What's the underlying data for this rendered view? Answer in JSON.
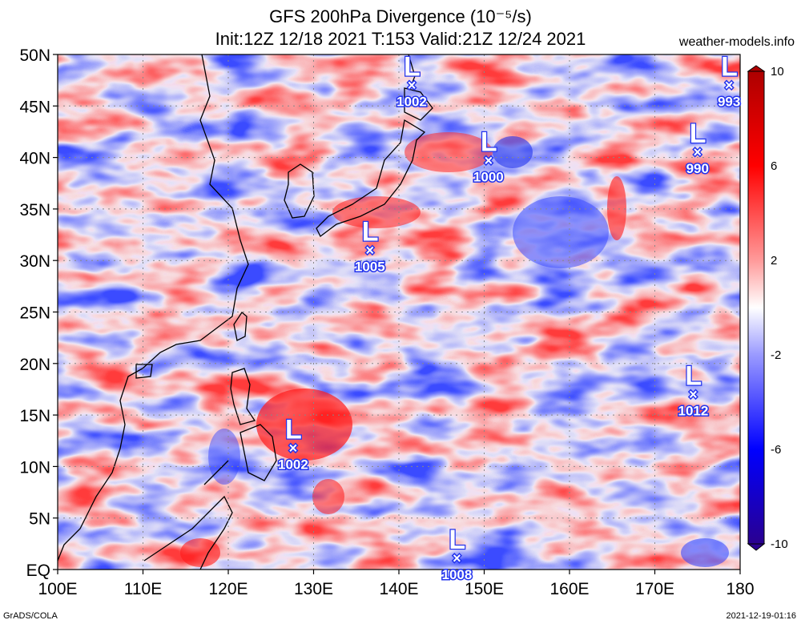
{
  "header": {
    "title_line1": "GFS 200hPa Divergence (10⁻⁵/s)",
    "title_line2": "Init:12Z 12/18 2021 T:153 Valid:21Z 12/24 2021",
    "brand": "weather-models.info"
  },
  "footer": {
    "left": "GrADS/COLA",
    "right": "2021-12-19-01:16"
  },
  "map": {
    "lon_range": [
      100,
      180
    ],
    "lat_range": [
      0,
      50
    ],
    "lon_ticks": [
      {
        "v": 100,
        "label": "100E"
      },
      {
        "v": 110,
        "label": "110E"
      },
      {
        "v": 120,
        "label": "120E"
      },
      {
        "v": 130,
        "label": "130E"
      },
      {
        "v": 140,
        "label": "140E"
      },
      {
        "v": 150,
        "label": "150E"
      },
      {
        "v": 160,
        "label": "160E"
      },
      {
        "v": 170,
        "label": "170E"
      },
      {
        "v": 180,
        "label": "180"
      }
    ],
    "lat_ticks": [
      {
        "v": 50,
        "label": "50N"
      },
      {
        "v": 45,
        "label": "45N"
      },
      {
        "v": 40,
        "label": "40N"
      },
      {
        "v": 35,
        "label": "35N"
      },
      {
        "v": 30,
        "label": "30N"
      },
      {
        "v": 25,
        "label": "25N"
      },
      {
        "v": 20,
        "label": "20N"
      },
      {
        "v": 15,
        "label": "15N"
      },
      {
        "v": 10,
        "label": "10N"
      },
      {
        "v": 5,
        "label": "5N"
      },
      {
        "v": 0,
        "label": "EQ"
      }
    ],
    "grid": "dotted",
    "lows": [
      {
        "name": "low-1002-north",
        "lon": 141.5,
        "lat": 47.0,
        "pressure": "1002"
      },
      {
        "name": "low-993",
        "lon": 178.7,
        "lat": 47.0,
        "pressure": "993"
      },
      {
        "name": "low-1000",
        "lon": 150.5,
        "lat": 39.7,
        "pressure": "1000"
      },
      {
        "name": "low-990",
        "lon": 175.0,
        "lat": 40.5,
        "pressure": "990"
      },
      {
        "name": "low-1005",
        "lon": 136.6,
        "lat": 31.0,
        "pressure": "1005"
      },
      {
        "name": "low-1012",
        "lon": 174.5,
        "lat": 17.0,
        "pressure": "1012"
      },
      {
        "name": "low-1002-south",
        "lon": 127.6,
        "lat": 11.8,
        "pressure": "1002"
      },
      {
        "name": "low-1008",
        "lon": 146.8,
        "lat": 1.1,
        "pressure": "1008"
      }
    ]
  },
  "colorbar": {
    "labels": [
      "10",
      "6",
      "2",
      "-2",
      "-6",
      "-10"
    ],
    "colors": [
      "#ad0000",
      "#ff0000",
      "#ff8a8a",
      "#ffd2d2",
      "#ffffff",
      "#d2d2ff",
      "#8a8aff",
      "#0000ff",
      "#1a0096"
    ]
  },
  "colors": {
    "positive": "#ff2a2a",
    "negative": "#2a3cff",
    "coastline": "#000000",
    "low_marker": "#2233ee"
  }
}
